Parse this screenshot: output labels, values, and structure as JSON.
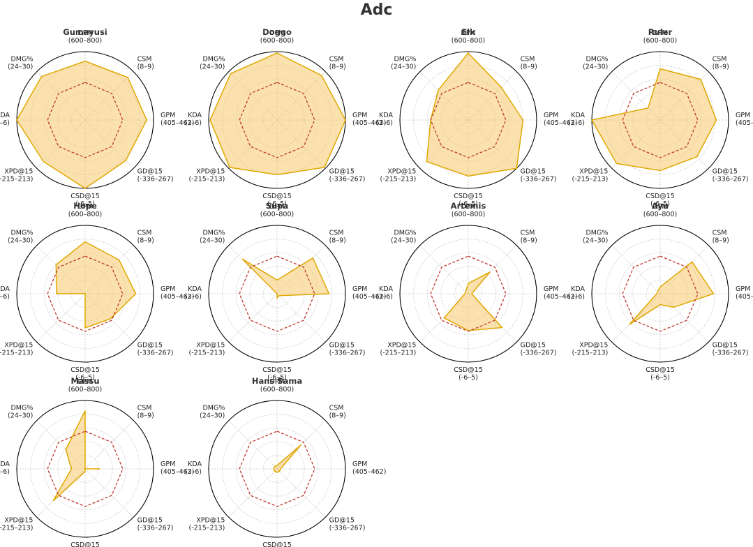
{
  "figure_title": "Adc",
  "colors": {
    "fill": "#f5c86a",
    "edge": "#e0a800",
    "average": "#c0392b",
    "grid": "#c8c8c8",
    "axis_text": "#222222",
    "title_text": "#333333"
  },
  "chart_data": {
    "type": "radar",
    "axes": [
      {
        "name": "DPM",
        "range": "(600–800)"
      },
      {
        "name": "CSM",
        "range": "(8–9)"
      },
      {
        "name": "GPM",
        "range": "(405–462)"
      },
      {
        "name": "GD@15",
        "range": "(-336–267)"
      },
      {
        "name": "CSD@15",
        "range": "(-6–5)"
      },
      {
        "name": "XPD@15",
        "range": "(-215–213)"
      },
      {
        "name": "KDA",
        "range": "(3–6)"
      },
      {
        "name": "DMG%",
        "range": "(24–30)"
      }
    ],
    "scale_max": 1.0,
    "gridlines": [
      0.2,
      0.4,
      0.6,
      0.8
    ],
    "average_reference": [
      0.55,
      0.55,
      0.55,
      0.55,
      0.55,
      0.55,
      0.55,
      0.55
    ],
    "players": [
      {
        "name": "Gumayusi",
        "values": [
          0.86,
          0.88,
          0.9,
          0.84,
          1.0,
          0.86,
          1.0,
          0.9
        ]
      },
      {
        "name": "Doggo",
        "values": [
          0.98,
          0.92,
          1.0,
          0.98,
          0.8,
          0.98,
          0.98,
          0.96
        ]
      },
      {
        "name": "Elk",
        "values": [
          0.98,
          0.68,
          0.8,
          1.0,
          0.82,
          0.86,
          0.55,
          0.62
        ]
      },
      {
        "name": "Ruler",
        "values": [
          0.75,
          0.84,
          0.82,
          0.76,
          0.74,
          0.9,
          1.0,
          0.25
        ]
      },
      {
        "name": "Hope",
        "values": [
          0.76,
          0.7,
          0.74,
          0.52,
          0.5,
          0.0,
          0.42,
          0.6
        ]
      },
      {
        "name": "Supa",
        "values": [
          0.2,
          0.74,
          0.76,
          0.04,
          0.06,
          0.0,
          0.0,
          0.72
        ]
      },
      {
        "name": "Artemis",
        "values": [
          0.15,
          0.45,
          0.05,
          0.7,
          0.54,
          0.5,
          0.05,
          0.05
        ]
      },
      {
        "name": "Ayu",
        "values": [
          0.1,
          0.66,
          0.78,
          0.28,
          0.16,
          0.64,
          0.05,
          0.05
        ]
      },
      {
        "name": "Massu",
        "values": [
          0.85,
          0.0,
          0.22,
          0.0,
          0.04,
          0.66,
          0.2,
          0.4
        ]
      },
      {
        "name": "Hans Sama",
        "values": [
          0.05,
          0.5,
          0.05,
          0.05,
          0.05,
          0.05,
          0.05,
          0.05
        ]
      }
    ]
  }
}
